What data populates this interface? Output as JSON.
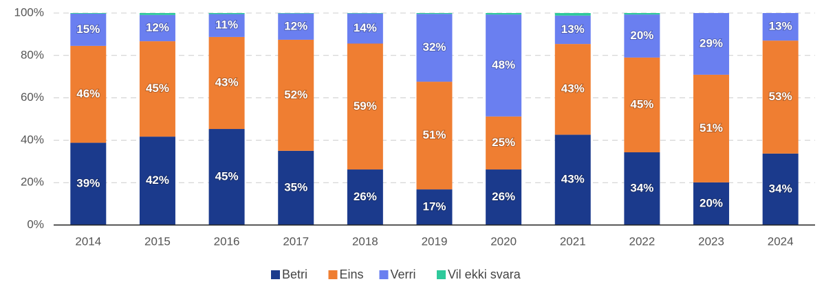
{
  "chart_data": {
    "type": "stacked_bar",
    "categories": [
      "2014",
      "2015",
      "2016",
      "2017",
      "2018",
      "2019",
      "2020",
      "2021",
      "2022",
      "2023",
      "2024"
    ],
    "series": [
      {
        "name": "Betri",
        "color": "#1b3a8c",
        "values": [
          38.8,
          41.7,
          45.3,
          35,
          26.2,
          16.8,
          26.2,
          42.6,
          34.3,
          20.1,
          33.7
        ],
        "value_labels": [
          "39%",
          "42%",
          "45%",
          "35%",
          "26%",
          "17%",
          "26%",
          "43%",
          "34%",
          "20%",
          "34%"
        ]
      },
      {
        "name": "Eins",
        "color": "#ef7e32",
        "values": [
          45.7,
          45,
          43.4,
          52.4,
          59.4,
          50.8,
          25,
          42.8,
          44.7,
          50.8,
          53.3
        ],
        "value_labels": [
          "46%",
          "45%",
          "43%",
          "52%",
          "59%",
          "51%",
          "25%",
          "43%",
          "45%",
          "51%",
          "53%"
        ]
      },
      {
        "name": "Verri",
        "color": "#6a7ff0",
        "values": [
          15.2,
          12.4,
          10.8,
          12.4,
          14.2,
          32,
          48.1,
          13.4,
          20.3,
          29.1,
          13
        ],
        "value_labels": [
          "15%",
          "12%",
          "11%",
          "12%",
          "14%",
          "32%",
          "48%",
          "13%",
          "20%",
          "29%",
          "13%"
        ]
      },
      {
        "name": "Vil ekki svara",
        "color": "#2ec99b",
        "values": [
          0.3,
          0.9,
          0.5,
          0.2,
          0.2,
          0.4,
          0.7,
          1.2,
          0.7,
          0,
          0
        ]
      }
    ],
    "ylim": [
      0,
      100
    ],
    "yticks": [
      {
        "value": 0,
        "label": "0%"
      },
      {
        "value": 20,
        "label": "20%"
      },
      {
        "value": 40,
        "label": "40%"
      },
      {
        "value": 60,
        "label": "60%"
      },
      {
        "value": 80,
        "label": "80%"
      },
      {
        "value": 100,
        "label": "100%"
      }
    ],
    "grid": true,
    "legend": "bottom"
  }
}
